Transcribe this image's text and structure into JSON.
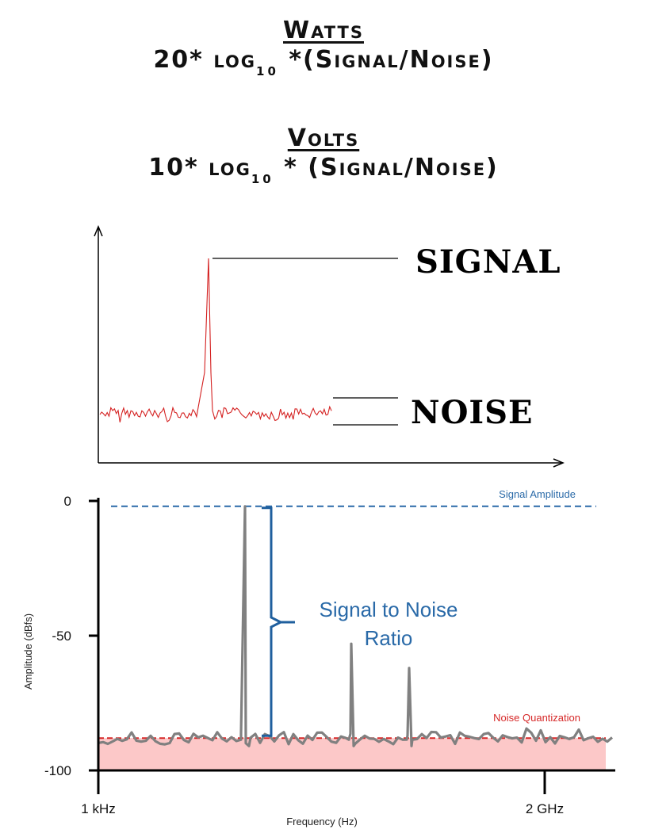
{
  "formulas": {
    "watts_heading": "Watts",
    "watts_prefix": "20* log",
    "watts_base": "10",
    "watts_suffix": " *(Signal/Noise)",
    "volts_heading": "Volts",
    "volts_prefix": "10* log",
    "volts_base": "10",
    "volts_suffix": " * (Signal/Noise)"
  },
  "top_diagram": {
    "signal_label": "SIGNAL",
    "noise_label": "NOISE",
    "trace_color": "#d42020"
  },
  "chart_data": {
    "type": "line",
    "xlabel": "Frequency (Hz)",
    "ylabel": "Amplitude (dBfs)",
    "ylim": [
      -100,
      0
    ],
    "yticks": [
      "0",
      "-50",
      "-100"
    ],
    "xticks": [
      "1 kHz",
      "2 GHz"
    ],
    "signal_amplitude_label": "Signal Amplitude",
    "noise_quantization_label": "Noise Quantization",
    "snr_label_line1": "Signal to Noise",
    "snr_label_line2": "Ratio",
    "signal_amplitude_db": -2,
    "noise_floor_db": -88,
    "peaks_db": [
      -2,
      -53,
      -62
    ],
    "colors": {
      "trace": "#808080",
      "signal_line": "#2a6aa8",
      "noise_line": "#d62828",
      "noise_band": "#fcc8c8",
      "bracket": "#1f5f9e",
      "annotation_text": "#2a6aa8"
    }
  }
}
